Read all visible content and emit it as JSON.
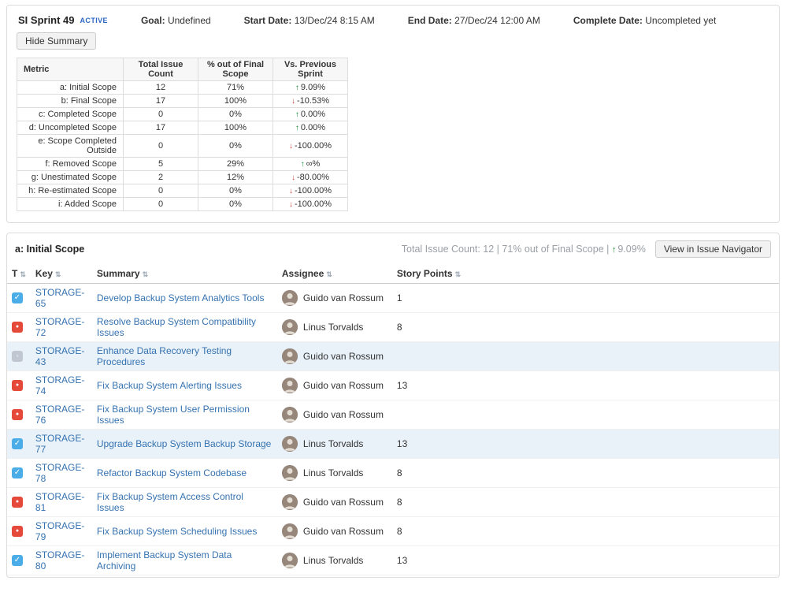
{
  "colors": {
    "link": "#3572b0",
    "up": "#14892c",
    "down": "#d04437",
    "row_highlight": "#e9f2f9",
    "type_task": "#4bade8",
    "type_bug": "#e5493a",
    "type_subtask": "#c1c7d0",
    "badge": "#2a67c5"
  },
  "sprint": {
    "name": "SI Sprint 49",
    "status": "ACTIVE",
    "goal_label": "Goal:",
    "goal_value": "Undefined",
    "start_label": "Start Date:",
    "start_value": "13/Dec/24 8:15 AM",
    "end_label": "End Date:",
    "end_value": "27/Dec/24 12:00 AM",
    "complete_label": "Complete Date:",
    "complete_value": "Uncompleted yet",
    "hide_summary_label": "Hide Summary"
  },
  "summary_table": {
    "headers": [
      "Metric",
      "Total Issue Count",
      "% out of Final Scope",
      "Vs. Previous Sprint"
    ],
    "rows": [
      {
        "metric": "a: Initial Scope",
        "count": "12",
        "pct": "71%",
        "dir": "up",
        "trend": "9.09%"
      },
      {
        "metric": "b: Final Scope",
        "count": "17",
        "pct": "100%",
        "dir": "down",
        "trend": "-10.53%"
      },
      {
        "metric": "c: Completed Scope",
        "count": "0",
        "pct": "0%",
        "dir": "up",
        "trend": "0.00%"
      },
      {
        "metric": "d: Uncompleted Scope",
        "count": "17",
        "pct": "100%",
        "dir": "up",
        "trend": "0.00%"
      },
      {
        "metric": "e: Scope Completed Outside",
        "count": "0",
        "pct": "0%",
        "dir": "down",
        "trend": "-100.00%"
      },
      {
        "metric": "f: Removed Scope",
        "count": "5",
        "pct": "29%",
        "dir": "up",
        "trend": "∞%"
      },
      {
        "metric": "g: Unestimated Scope",
        "count": "2",
        "pct": "12%",
        "dir": "down",
        "trend": "-80.00%"
      },
      {
        "metric": "h: Re-estimated Scope",
        "count": "0",
        "pct": "0%",
        "dir": "down",
        "trend": "-100.00%"
      },
      {
        "metric": "i: Added Scope",
        "count": "0",
        "pct": "0%",
        "dir": "down",
        "trend": "-100.00%"
      }
    ]
  },
  "scope_section": {
    "title": "a: Initial Scope",
    "stats_text": "Total Issue Count: 12 | 71% out of Final Scope | ",
    "stats_trend_arrow": "↑",
    "stats_trend_value": "9.09%",
    "button_label": "View in Issue Navigator"
  },
  "issue_table": {
    "headers": [
      {
        "id": "type",
        "label": "T",
        "sortable": true
      },
      {
        "id": "key",
        "label": "Key",
        "sortable": true
      },
      {
        "id": "summary",
        "label": "Summary",
        "sortable": true
      },
      {
        "id": "assignee",
        "label": "Assignee",
        "sortable": true
      },
      {
        "id": "points",
        "label": "Story Points",
        "sortable": true
      }
    ],
    "type_glyphs": {
      "task": "✓",
      "bug": "●",
      "subtask": "▫"
    },
    "rows": [
      {
        "type": "task",
        "key": "STORAGE-65",
        "summary": "Develop Backup System Analytics Tools",
        "assignee": "Guido van Rossum",
        "points": "1",
        "highlight": false
      },
      {
        "type": "bug",
        "key": "STORAGE-72",
        "summary": "Resolve Backup System Compatibility Issues",
        "assignee": "Linus Torvalds",
        "points": "8",
        "highlight": false
      },
      {
        "type": "subtask",
        "key": "STORAGE-43",
        "summary": "Enhance Data Recovery Testing Procedures",
        "assignee": "Guido van Rossum",
        "points": "",
        "highlight": true
      },
      {
        "type": "bug",
        "key": "STORAGE-74",
        "summary": "Fix Backup System Alerting Issues",
        "assignee": "Guido van Rossum",
        "points": "13",
        "highlight": false
      },
      {
        "type": "bug",
        "key": "STORAGE-76",
        "summary": "Fix Backup System User Permission Issues",
        "assignee": "Guido van Rossum",
        "points": "",
        "highlight": false
      },
      {
        "type": "task",
        "key": "STORAGE-77",
        "summary": "Upgrade Backup System Backup Storage",
        "assignee": "Linus Torvalds",
        "points": "13",
        "highlight": true
      },
      {
        "type": "task",
        "key": "STORAGE-78",
        "summary": "Refactor Backup System Codebase",
        "assignee": "Linus Torvalds",
        "points": "8",
        "highlight": false
      },
      {
        "type": "bug",
        "key": "STORAGE-81",
        "summary": "Fix Backup System Access Control Issues",
        "assignee": "Guido van Rossum",
        "points": "8",
        "highlight": false
      },
      {
        "type": "bug",
        "key": "STORAGE-79",
        "summary": "Fix Backup System Scheduling Issues",
        "assignee": "Guido van Rossum",
        "points": "8",
        "highlight": false
      },
      {
        "type": "task",
        "key": "STORAGE-80",
        "summary": "Implement Backup System Data Archiving",
        "assignee": "Linus Torvalds",
        "points": "13",
        "highlight": false
      }
    ]
  }
}
